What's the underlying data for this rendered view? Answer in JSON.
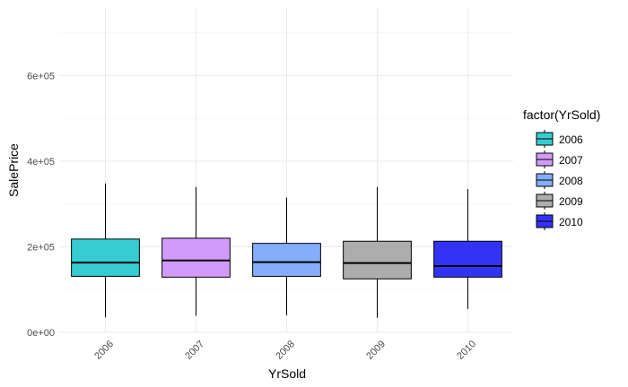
{
  "chart_data": {
    "type": "boxplot",
    "xlabel": "YrSold",
    "ylabel": "SalePrice",
    "ylim": [
      0,
      760000
    ],
    "y_ticks": [
      0,
      200000,
      400000,
      600000
    ],
    "y_tick_labels": [
      "0e+00",
      "2e+05",
      "4e+05",
      "6e+05"
    ],
    "categories": [
      "2006",
      "2007",
      "2008",
      "2009",
      "2010"
    ],
    "legend": {
      "title": "factor(YrSold)",
      "position": "right",
      "entries": [
        "2006",
        "2007",
        "2008",
        "2009",
        "2010"
      ]
    },
    "grid": true,
    "boxes": [
      {
        "category": "2006",
        "color": "#36CCD2",
        "whisker_low": 35000,
        "q1": 131000,
        "median": 163000,
        "q3": 218000,
        "whisker_high": 348000
      },
      {
        "category": "2007",
        "color": "#D29BFA",
        "whisker_low": 39000,
        "q1": 129000,
        "median": 168000,
        "q3": 220000,
        "whisker_high": 340000
      },
      {
        "category": "2008",
        "color": "#85AEFA",
        "whisker_low": 40000,
        "q1": 131000,
        "median": 164000,
        "q3": 208000,
        "whisker_high": 315000
      },
      {
        "category": "2009",
        "color": "#ADADAD",
        "whisker_low": 34000,
        "q1": 125000,
        "median": 162000,
        "q3": 213000,
        "whisker_high": 340000
      },
      {
        "category": "2010",
        "color": "#3333F5",
        "whisker_low": 55000,
        "q1": 129000,
        "median": 155000,
        "q3": 213000,
        "whisker_high": 335000
      }
    ]
  }
}
